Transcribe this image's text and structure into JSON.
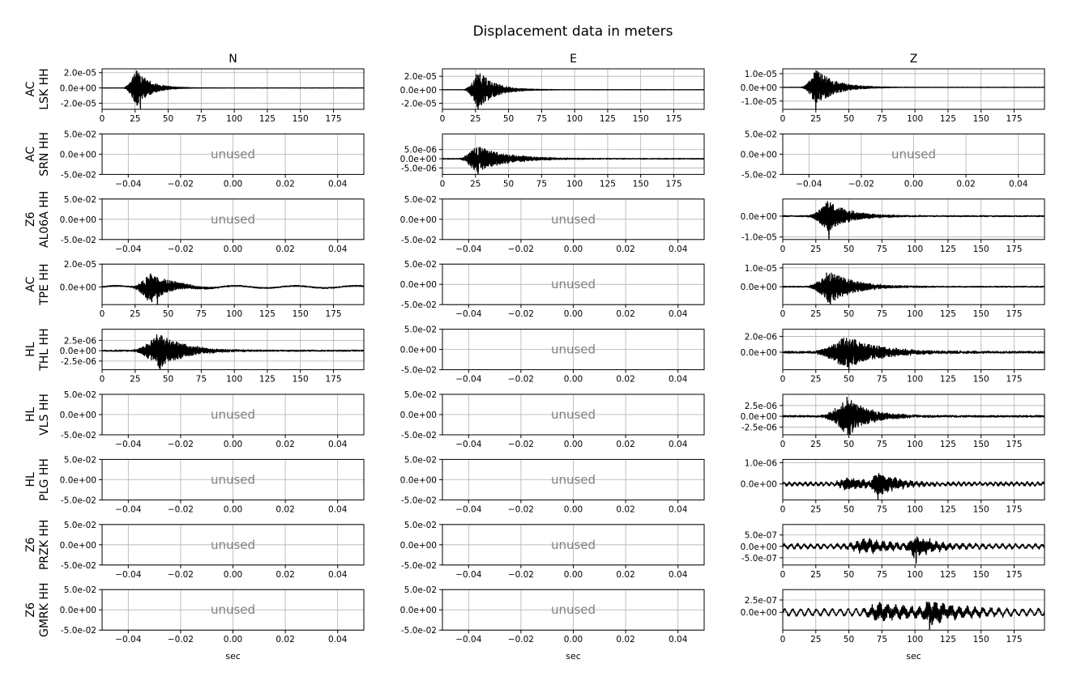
{
  "chart_data": {
    "type": "line",
    "title": "Displacement data in meters",
    "columns": [
      "N",
      "E",
      "Z"
    ],
    "rows": [
      "AC\nLSK HH",
      "AC\nSRN HH",
      "Z6\nAL06A HH",
      "AC\nTPE HH",
      "HL\nTHL HH",
      "HL\nVLS HH",
      "HL\nPLG HH",
      "Z6\nPRZK HH",
      "Z6\nGMRK HH"
    ],
    "xlabel": "sec",
    "unused_label": "unused",
    "unused_axes": {
      "xlim": [
        -0.05,
        0.05
      ],
      "xticks": [
        -0.04,
        -0.02,
        0.0,
        0.02,
        0.04
      ],
      "xtick_labels": [
        "−0.04",
        "−0.02",
        "0.00",
        "0.02",
        "0.04"
      ],
      "ylim": [
        -0.05,
        0.05
      ],
      "yticks": [
        0.05,
        0.0,
        -0.05
      ],
      "ytick_labels": [
        "5.0e-02",
        "0.0e+00",
        "-5.0e-02"
      ]
    },
    "time_axis": {
      "xlim": [
        0,
        198
      ],
      "xticks": [
        0,
        25,
        50,
        75,
        100,
        125,
        150,
        175
      ],
      "xtick_labels": [
        "0",
        "25",
        "50",
        "75",
        "100",
        "125",
        "150",
        "175"
      ]
    },
    "grid": true,
    "panels": [
      {
        "row": 0,
        "col": 0,
        "used": true,
        "ylim": [
          -2.8e-05,
          2.5e-05
        ],
        "yticks": [
          2e-05,
          0,
          -2e-05
        ],
        "ytick_labels": [
          "2.0e-05",
          "0.0e+00",
          "-2.0e-05"
        ],
        "signal": {
          "seed": 11,
          "noise": 1.2e-07,
          "bursts": [
            {
              "start": 15,
              "peak": 26,
              "amp": 2.5e-05,
              "decay": 10
            }
          ],
          "dips": [
            {
              "t": 29,
              "v": -2.8e-05
            }
          ]
        }
      },
      {
        "row": 0,
        "col": 1,
        "used": true,
        "ylim": [
          -2.9e-05,
          3.1e-05
        ],
        "yticks": [
          2e-05,
          0,
          -2e-05
        ],
        "ytick_labels": [
          "2.0e-05",
          "0.0e+00",
          "-2.0e-05"
        ],
        "signal": {
          "seed": 12,
          "noise": 1.5e-07,
          "bursts": [
            {
              "start": 15,
              "peak": 27,
              "amp": 2.9e-05,
              "decay": 12
            }
          ],
          "dips": [
            {
              "t": 27,
              "v": -2.9e-05
            }
          ]
        }
      },
      {
        "row": 0,
        "col": 2,
        "used": true,
        "ylim": [
          -1.6e-05,
          1.35e-05
        ],
        "yticks": [
          1e-05,
          0,
          -1e-05
        ],
        "ytick_labels": [
          "1.0e-05",
          "0.0e+00",
          "-1.0e-05"
        ],
        "signal": {
          "seed": 13,
          "noise": 1e-07,
          "bursts": [
            {
              "start": 13,
              "peak": 25,
              "amp": 1.35e-05,
              "decay": 14
            }
          ],
          "dips": [
            {
              "t": 25,
              "v": -1.6e-05
            }
          ]
        }
      },
      {
        "row": 1,
        "col": 0,
        "used": false
      },
      {
        "row": 1,
        "col": 1,
        "used": true,
        "ylim": [
          -8.5e-06,
          1.35e-05
        ],
        "yticks": [
          5e-06,
          0,
          -5e-06
        ],
        "ytick_labels": [
          "5.0e-06",
          "0.0e+00",
          "-5.0e-06"
        ],
        "signal": {
          "seed": 21,
          "noise": 2e-07,
          "bursts": [
            {
              "start": 11,
              "peak": 25,
              "amp": 7.5e-06,
              "decay": 22
            }
          ],
          "dips": [
            {
              "t": 27,
              "v": -8.5e-06
            }
          ]
        }
      },
      {
        "row": 1,
        "col": 2,
        "used": false
      },
      {
        "row": 2,
        "col": 0,
        "used": false
      },
      {
        "row": 2,
        "col": 1,
        "used": false
      },
      {
        "row": 2,
        "col": 2,
        "used": true,
        "ylim": [
          -1.12e-05,
          8.2e-06
        ],
        "yticks": [
          0,
          -1e-05
        ],
        "ytick_labels": [
          "0.0e+00",
          "-1.0e-05"
        ],
        "signal": {
          "seed": 31,
          "noise": 2.5e-07,
          "bursts": [
            {
              "start": 16,
              "peak": 34,
              "amp": 7.5e-06,
              "decay": 16
            }
          ],
          "dips": [
            {
              "t": 35,
              "v": -1.15e-05
            }
          ]
        }
      },
      {
        "row": 3,
        "col": 0,
        "used": true,
        "ylim": [
          -1.55e-05,
          2e-05
        ],
        "yticks": [
          2e-05,
          0
        ],
        "ytick_labels": [
          "2.0e-05",
          "0.0e+00"
        ],
        "signal": {
          "seed": 41,
          "noise": 4e-07,
          "wave": {
            "amp": 1e-06,
            "period": 45
          },
          "bursts": [
            {
              "start": 20,
              "peak": 36,
              "amp": 1.4e-05,
              "decay": 14
            }
          ],
          "dips": [
            {
              "t": 42,
              "v": -1.55e-05
            }
          ]
        }
      },
      {
        "row": 3,
        "col": 1,
        "used": false
      },
      {
        "row": 3,
        "col": 2,
        "used": true,
        "ylim": [
          -9.5e-06,
          1.2e-05
        ],
        "yticks": [
          1e-05,
          0
        ],
        "ytick_labels": [
          "1.0e-05",
          "0.0e+00"
        ],
        "signal": {
          "seed": 42,
          "noise": 2.5e-07,
          "bursts": [
            {
              "start": 16,
              "peak": 35,
              "amp": 9e-06,
              "decay": 18
            }
          ],
          "dips": [
            {
              "t": 36,
              "v": -9.5e-06
            }
          ]
        }
      },
      {
        "row": 4,
        "col": 0,
        "used": true,
        "ylim": [
          -4.6e-06,
          5.2e-06
        ],
        "yticks": [
          2.5e-06,
          0,
          -2.5e-06
        ],
        "ytick_labels": [
          "2.5e-06",
          "0.0e+00",
          "-2.5e-06"
        ],
        "signal": {
          "seed": 51,
          "noise": 1.5e-07,
          "bursts": [
            {
              "start": 20,
              "peak": 43,
              "amp": 4.5e-06,
              "decay": 18
            }
          ],
          "dips": [
            {
              "t": 44,
              "v": -4.6e-06
            }
          ]
        }
      },
      {
        "row": 4,
        "col": 1,
        "used": false
      },
      {
        "row": 4,
        "col": 2,
        "used": true,
        "ylim": [
          -2.2e-06,
          2.9e-06
        ],
        "yticks": [
          2e-06,
          0
        ],
        "ytick_labels": [
          "2.0e-06",
          "0.0e+00"
        ],
        "signal": {
          "seed": 52,
          "noise": 1.2e-07,
          "bursts": [
            {
              "start": 18,
              "peak": 47,
              "amp": 2.1e-06,
              "decay": 25
            }
          ],
          "dips": [
            {
              "t": 50,
              "v": -2.2e-06
            }
          ]
        }
      },
      {
        "row": 5,
        "col": 0,
        "used": false
      },
      {
        "row": 5,
        "col": 1,
        "used": false
      },
      {
        "row": 5,
        "col": 2,
        "used": true,
        "ylim": [
          -4.3e-06,
          5.1e-06
        ],
        "yticks": [
          2.5e-06,
          0,
          -2.5e-06
        ],
        "ytick_labels": [
          "2.5e-06",
          "0.0e+00",
          "-2.5e-06"
        ],
        "signal": {
          "seed": 61,
          "noise": 2e-07,
          "bursts": [
            {
              "start": 25,
              "peak": 49,
              "amp": 4.5e-06,
              "decay": 16
            }
          ],
          "dips": [
            {
              "t": 51,
              "v": -4.3e-06
            }
          ]
        }
      },
      {
        "row": 6,
        "col": 0,
        "used": false
      },
      {
        "row": 6,
        "col": 1,
        "used": false
      },
      {
        "row": 6,
        "col": 2,
        "used": true,
        "ylim": [
          -7.5e-07,
          1.15e-06
        ],
        "yticks": [
          1e-06,
          0
        ],
        "ytick_labels": [
          "1.0e-06",
          "0.0e+00"
        ],
        "signal": {
          "seed": 71,
          "noise": 5e-08,
          "wave": {
            "amp": 6e-08,
            "period": 4
          },
          "bursts": [
            {
              "start": 35,
              "peak": 48,
              "amp": 2.6e-07,
              "decay": 20
            },
            {
              "start": 62,
              "peak": 71,
              "amp": 6e-07,
              "decay": 14
            }
          ],
          "dips": [
            {
              "t": 72,
              "v": -7.5e-07
            }
          ]
        }
      },
      {
        "row": 7,
        "col": 0,
        "used": false
      },
      {
        "row": 7,
        "col": 1,
        "used": false
      },
      {
        "row": 7,
        "col": 2,
        "used": true,
        "ylim": [
          -8.2e-07,
          9.6e-07
        ],
        "yticks": [
          5e-07,
          0,
          -5e-07
        ],
        "ytick_labels": [
          "5.0e-07",
          "0.0e+00",
          "-5.0e-07"
        ],
        "signal": {
          "seed": 81,
          "noise": 5e-08,
          "wave": {
            "amp": 8e-08,
            "period": 5
          },
          "bursts": [
            {
              "start": 40,
              "peak": 62,
              "amp": 2.8e-07,
              "decay": 20
            },
            {
              "start": 88,
              "peak": 100,
              "amp": 4.5e-07,
              "decay": 15
            }
          ],
          "dips": [
            {
              "t": 101,
              "v": -7.5e-07
            }
          ]
        }
      },
      {
        "row": 8,
        "col": 0,
        "used": false
      },
      {
        "row": 8,
        "col": 1,
        "used": false
      },
      {
        "row": 8,
        "col": 2,
        "used": true,
        "ylim": [
          -3.6e-07,
          4.6e-07
        ],
        "yticks": [
          2.5e-07,
          0
        ],
        "ytick_labels": [
          "2.5e-07",
          "0.0e+00"
        ],
        "signal": {
          "seed": 91,
          "noise": 2e-08,
          "wave": {
            "amp": 6e-08,
            "period": 6
          },
          "bursts": [
            {
              "start": 55,
              "peak": 72,
              "amp": 1.5e-07,
              "decay": 40
            },
            {
              "start": 100,
              "peak": 110,
              "amp": 2.2e-07,
              "decay": 25
            }
          ],
          "dips": [
            {
              "t": 111,
              "v": -3.6e-07
            }
          ]
        }
      }
    ]
  }
}
